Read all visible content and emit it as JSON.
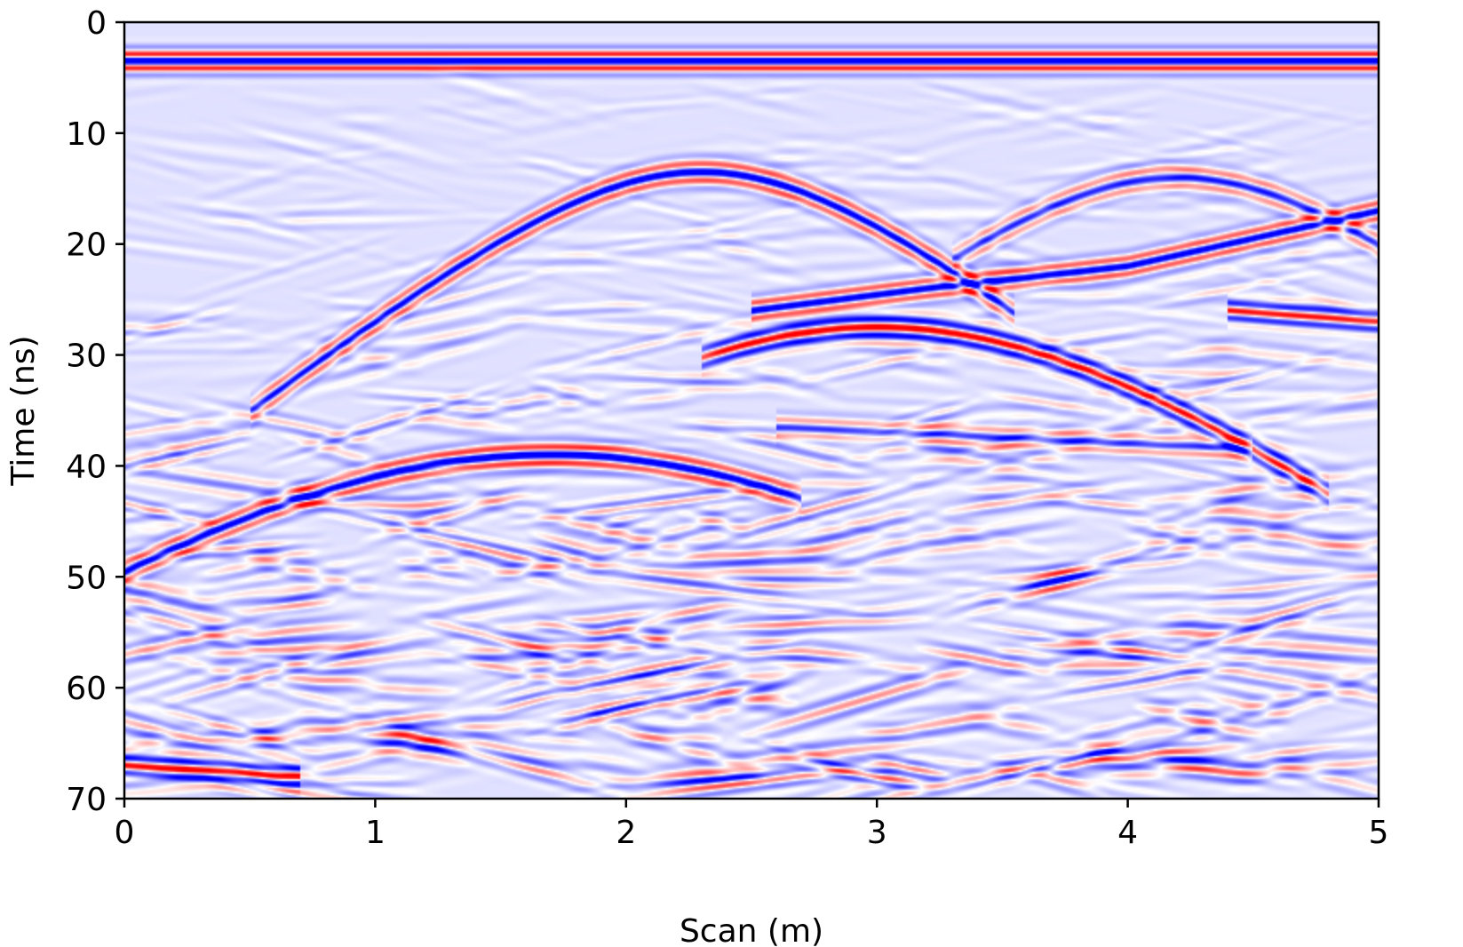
{
  "chart_data": {
    "type": "heatmap",
    "title": "",
    "xlabel": "Scan (m)",
    "ylabel": "Time (ns)",
    "xlim": [
      0,
      5
    ],
    "ylim": [
      0,
      70
    ],
    "y_inverted": true,
    "x_ticks": [
      0,
      1,
      2,
      3,
      4,
      5
    ],
    "y_ticks": [
      0,
      10,
      20,
      30,
      40,
      50,
      60,
      70
    ],
    "x_tick_labels": [
      "0",
      "1",
      "2",
      "3",
      "4",
      "5"
    ],
    "y_tick_labels": [
      "0",
      "10",
      "20",
      "30",
      "40",
      "50",
      "60",
      "70"
    ],
    "colormap": "bwr",
    "colors": {
      "negative": "#0000ff",
      "zero": "#ffffff",
      "positive": "#ff0000",
      "background_tint": "#dcdcf8"
    },
    "grid": false,
    "direct_wave_band": {
      "time_ns": [
        2,
        5
      ],
      "pattern": [
        "red-faint",
        "blue",
        "red",
        "blue-faint"
      ]
    },
    "hyperbolas": [
      {
        "apex_x": 2.3,
        "apex_t": 13.5,
        "strength": 0.9,
        "left_extent": 0.6,
        "right_extent": 3.45,
        "primary": "blue"
      },
      {
        "apex_x": 4.2,
        "apex_t": 14.0,
        "strength": 0.6,
        "left_extent": 3.4,
        "right_extent": 5.0,
        "primary": "blue"
      },
      {
        "apex_x": 3.0,
        "apex_t": 27.5,
        "strength": 1.0,
        "left_extent": 2.4,
        "right_extent": 4.7,
        "primary": "red"
      },
      {
        "apex_x": 1.7,
        "apex_t": 39.0,
        "strength": 1.0,
        "left_extent": 0.0,
        "right_extent": 2.6,
        "primary": "blue"
      }
    ],
    "reflectors": [
      {
        "x": [
          2.5,
          3.2,
          4.0,
          5.0
        ],
        "t": [
          26.0,
          24.0,
          22.0,
          17.0
        ],
        "strength": 0.9
      },
      {
        "x": [
          4.4,
          5.0
        ],
        "t": [
          26.0,
          27.0
        ],
        "strength": 0.8
      },
      {
        "x": [
          2.6,
          4.5
        ],
        "t": [
          36.5,
          38.5
        ],
        "strength": 0.55
      },
      {
        "x": [
          0.0,
          0.7
        ],
        "t": [
          67.0,
          68.0
        ],
        "strength": 0.95
      }
    ]
  }
}
